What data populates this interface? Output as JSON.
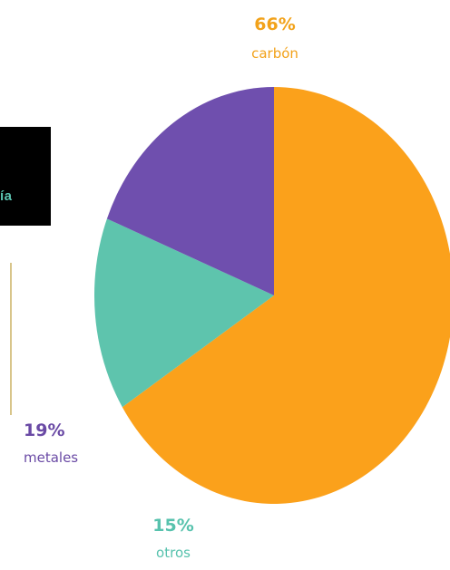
{
  "side_panel": {
    "label": "ía"
  },
  "colors": {
    "panel_bg": "#000000",
    "panel_text": "#5bc4b0",
    "divider": "#d8c58a"
  },
  "chart_data": {
    "type": "pie",
    "slices": [
      {
        "name": "carbón",
        "value": 66,
        "label": "66%",
        "color": "#fba11b",
        "label_color": "#f2a21a"
      },
      {
        "name": "otros",
        "value": 15,
        "label": "15%",
        "color": "#5ec4ad",
        "label_color": "#57c2ad"
      },
      {
        "name": "metales",
        "value": 19,
        "label": "19%",
        "color": "#6f4fae",
        "label_color": "#6a4aa5"
      }
    ]
  }
}
